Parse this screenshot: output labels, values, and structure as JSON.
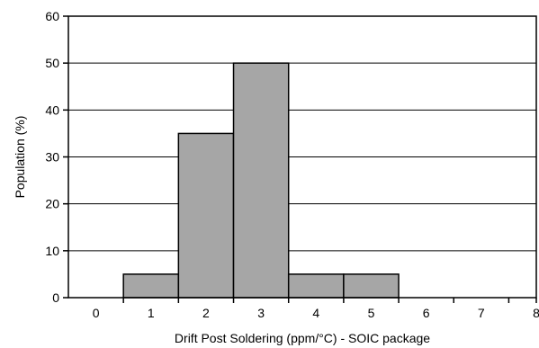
{
  "chart_data": {
    "type": "bar",
    "categories": [
      "0",
      "1",
      "2",
      "3",
      "4",
      "5",
      "6",
      "7",
      "8"
    ],
    "values": [
      0,
      5,
      35,
      50,
      5,
      5,
      0,
      0,
      0
    ],
    "xlabel": "Drift Post Soldering (ppm/°C) -  SOIC package",
    "ylabel": "Population (%)",
    "ylim": [
      0,
      60
    ],
    "yticks": [
      0,
      10,
      20,
      30,
      40,
      50,
      60
    ],
    "grid": true,
    "legend": "none",
    "colors": {
      "bar_fill": "#a6a6a6",
      "bar_stroke": "#000000",
      "grid": "#000000",
      "frame": "#000000"
    }
  }
}
